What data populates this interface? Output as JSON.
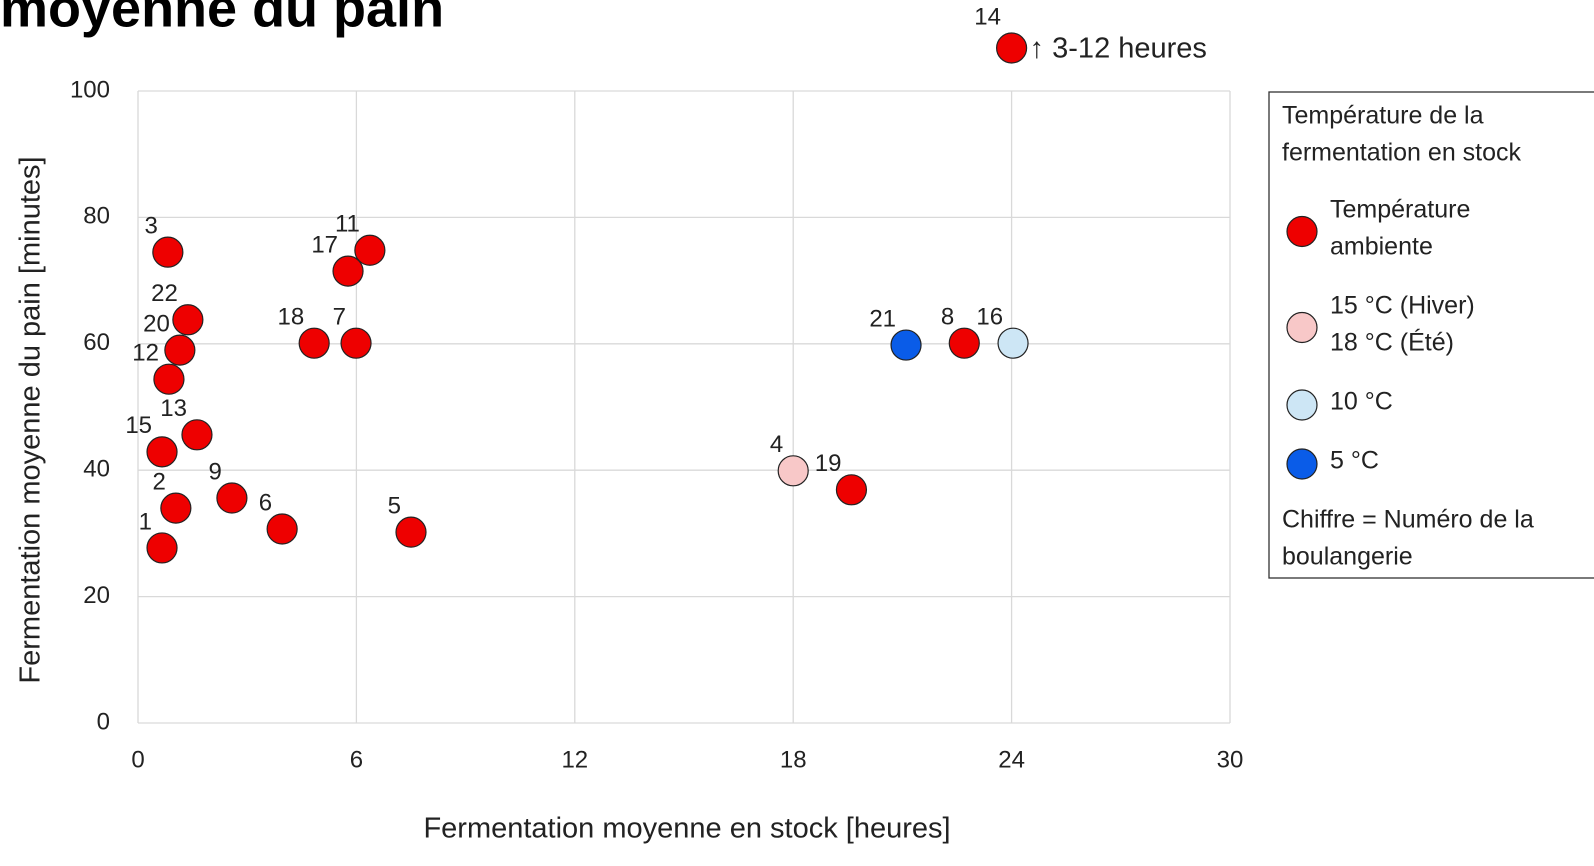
{
  "chart_data": {
    "type": "scatter",
    "title": "moyenne du pain",
    "x_label": "Fermentation moyenne en stock [heures]",
    "y_label": "Fermentation moyenne du pain [minutes]",
    "xlim": [
      0,
      30
    ],
    "xticks": [
      0,
      6,
      12,
      18,
      24,
      30
    ],
    "ylim": [
      0,
      100
    ],
    "yticks": [
      0,
      20,
      40,
      60,
      80,
      100
    ],
    "grid": true,
    "legend_title": [
      "Température de la",
      "fermentation en stock"
    ],
    "legend_note": [
      "Chiffre = Numéro de la",
      "boulangerie"
    ],
    "series": [
      {
        "name": [
          "Température",
          "ambiente"
        ],
        "color": "#ee0000",
        "labels": [
          "1",
          "2",
          "3",
          "5",
          "6",
          "7",
          "8",
          "9",
          "11",
          "12",
          "13",
          "15",
          "17",
          "18",
          "19",
          "20",
          "22"
        ],
        "x": [
          0.66,
          1.04,
          0.82,
          7.5,
          3.96,
          5.99,
          22.7,
          2.58,
          6.37,
          0.85,
          1.62,
          0.66,
          5.77,
          4.84,
          19.6,
          1.15,
          1.37
        ],
        "values": [
          27.7,
          34.0,
          74.5,
          30.2,
          30.7,
          60.1,
          60.1,
          35.6,
          74.8,
          54.4,
          45.6,
          42.9,
          71.5,
          60.1,
          36.9,
          59.0,
          63.8
        ]
      },
      {
        "name": [
          "15 °C (Hiver)",
          "18 °C  (Été)"
        ],
        "color": "#f8c8c8",
        "labels": [
          "4"
        ],
        "x": [
          18.0
        ],
        "values": [
          39.9
        ]
      },
      {
        "name": [
          "10 °C"
        ],
        "color": "#cde6f5",
        "labels": [
          "16"
        ],
        "x": [
          24.04
        ],
        "values": [
          60.1
        ]
      },
      {
        "name": [
          "5 °C"
        ],
        "color": "#0a5ce8",
        "labels": [
          "21"
        ],
        "x": [
          21.1
        ],
        "values": [
          59.8
        ]
      }
    ],
    "annotations": [
      {
        "label": "14",
        "x": 24,
        "text": "↑ 3-12 heures"
      }
    ]
  }
}
